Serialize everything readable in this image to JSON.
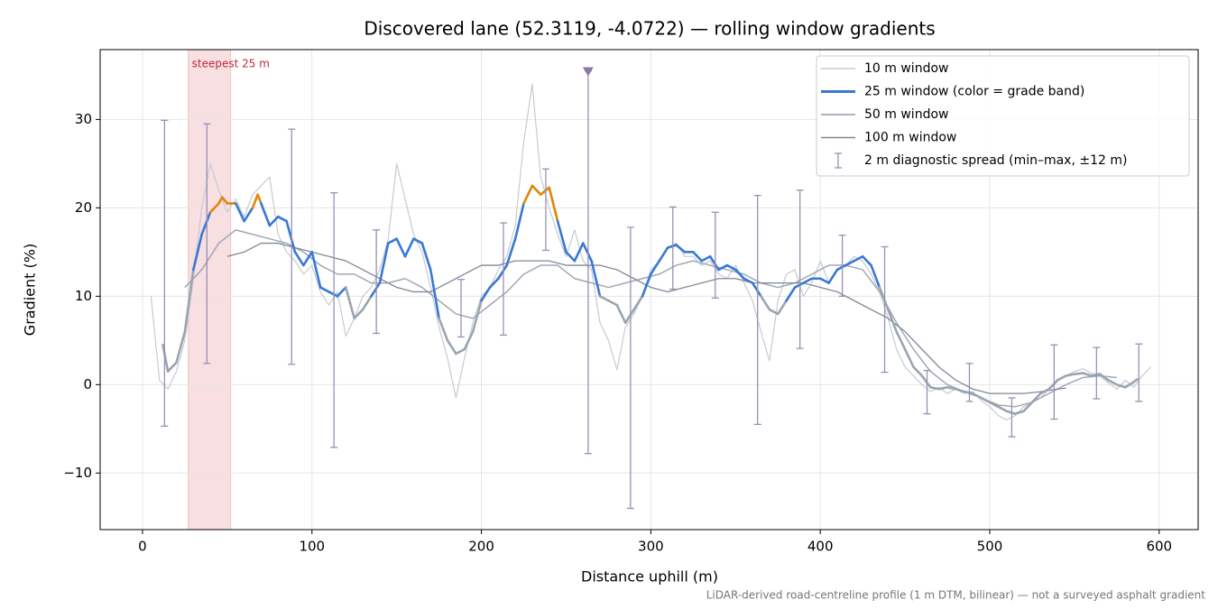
{
  "chart_data": {
    "type": "line",
    "title": "Discovered lane (52.3119, -4.0722) — rolling window gradients",
    "xlabel": "Distance uphill (m)",
    "ylabel": "Gradient (%)",
    "footnote": "LiDAR-derived road-centreline profile (1 m DTM, bilinear) — not a surveyed asphalt gradient",
    "xlim": [
      -25,
      623
    ],
    "ylim": [
      -16.4,
      37.9
    ],
    "xticks": [
      0,
      100,
      200,
      300,
      400,
      500,
      600
    ],
    "yticks": [
      {
        "value": -10,
        "label": "−10"
      },
      0,
      10,
      20,
      30
    ],
    "grid": true,
    "legend": "upper right",
    "highlight": {
      "label": "steepest 25 m",
      "x": [
        27,
        52
      ],
      "color": "#e8a3ab"
    },
    "series": [
      {
        "name": "10 m window",
        "color": "#c5cbd3",
        "x": [
          5,
          10,
          15,
          20,
          25,
          30,
          35,
          40,
          45,
          50,
          55,
          60,
          65,
          70,
          75,
          80,
          85,
          90,
          95,
          100,
          105,
          110,
          115,
          120,
          125,
          130,
          135,
          140,
          145,
          150,
          155,
          160,
          165,
          170,
          175,
          180,
          185,
          190,
          195,
          200,
          205,
          210,
          215,
          220,
          225,
          230,
          235,
          240,
          245,
          250,
          255,
          260,
          265,
          270,
          275,
          280,
          285,
          290,
          295,
          300,
          305,
          310,
          315,
          320,
          325,
          330,
          335,
          340,
          345,
          350,
          355,
          360,
          365,
          370,
          375,
          380,
          385,
          390,
          395,
          400,
          405,
          410,
          415,
          420,
          425,
          430,
          435,
          440,
          445,
          450,
          455,
          460,
          465,
          470,
          475,
          480,
          485,
          490,
          495,
          500,
          505,
          510,
          515,
          520,
          525,
          530,
          535,
          540,
          545,
          550,
          555,
          560,
          565,
          570,
          575,
          580,
          585,
          590,
          595
        ],
        "values": [
          10,
          0.5,
          -0.5,
          1.5,
          5,
          12,
          20,
          25,
          22,
          19.5,
          21,
          19,
          21.5,
          22.5,
          23.5,
          17,
          15,
          14,
          12.5,
          13.5,
          10.5,
          9,
          10.5,
          5.5,
          7.5,
          10,
          11,
          13,
          16.5,
          25,
          21,
          17,
          15,
          11,
          6.5,
          3,
          -1.5,
          3,
          7,
          10,
          11,
          13,
          14.5,
          18,
          27.5,
          34,
          23.5,
          20,
          17,
          14.5,
          17.5,
          14,
          13,
          7,
          5,
          1.7,
          6.5,
          8,
          10,
          13,
          14,
          15.5,
          16,
          14.5,
          14.5,
          13.5,
          14,
          12.5,
          12,
          13.5,
          11.5,
          9.5,
          6,
          2.7,
          9.5,
          12.5,
          13,
          10,
          11.5,
          14,
          11.5,
          13,
          13.5,
          14.5,
          14,
          12.5,
          10.5,
          7.5,
          4,
          2,
          1,
          0,
          -0.8,
          -0.3,
          -1,
          -0.5,
          -1,
          -0.8,
          -1.8,
          -2.5,
          -3.5,
          -4,
          -3.5,
          -2.5,
          -2,
          -1.5,
          -0.5,
          0.5,
          1,
          1.5,
          1.8,
          1.3,
          1,
          0.2,
          -0.5,
          0.5,
          -0.3,
          1,
          2
        ]
      },
      {
        "name": "25 m window (color = grade band)",
        "color": "#3a78d4",
        "band_colors": [
          {
            "below": 10,
            "color": "#9aa5b1"
          },
          {
            "below": 20,
            "color": "#3a78d4"
          },
          {
            "below": 100,
            "color": "#e0860a"
          }
        ],
        "x": [
          12,
          15,
          20,
          25,
          30,
          35,
          40,
          45,
          47,
          50,
          55,
          60,
          65,
          68,
          70,
          75,
          80,
          85,
          90,
          95,
          100,
          105,
          110,
          115,
          120,
          125,
          130,
          135,
          140,
          145,
          150,
          155,
          160,
          165,
          170,
          175,
          180,
          185,
          190,
          195,
          200,
          205,
          210,
          215,
          220,
          225,
          230,
          235,
          240,
          245,
          250,
          255,
          260,
          265,
          270,
          275,
          280,
          285,
          290,
          295,
          300,
          305,
          310,
          315,
          320,
          325,
          330,
          335,
          340,
          345,
          350,
          355,
          360,
          365,
          370,
          375,
          380,
          385,
          390,
          395,
          400,
          405,
          410,
          415,
          420,
          425,
          430,
          435,
          440,
          445,
          450,
          455,
          460,
          465,
          470,
          475,
          480,
          485,
          490,
          495,
          500,
          505,
          510,
          515,
          520,
          525,
          530,
          535,
          540,
          545,
          550,
          555,
          560,
          565,
          570,
          575,
          580,
          585,
          587
        ],
        "values": [
          4.5,
          1.5,
          2.5,
          6,
          13,
          17,
          19.5,
          20.5,
          21.2,
          20.5,
          20.5,
          18.5,
          20,
          21.5,
          20.5,
          18,
          19,
          18.5,
          15,
          13.5,
          15,
          11,
          10.5,
          10,
          11,
          7.5,
          8.5,
          10,
          11.5,
          16,
          16.5,
          14.5,
          16.5,
          16,
          13,
          7.5,
          5,
          3.5,
          4,
          6,
          9.5,
          11,
          12,
          13.5,
          16.5,
          20.5,
          22.5,
          21.5,
          22.3,
          18.5,
          15,
          14,
          16,
          14,
          10,
          9.5,
          9,
          7,
          8.5,
          10,
          12.5,
          14,
          15.5,
          15.8,
          15,
          15,
          14,
          14.5,
          13,
          13.5,
          13,
          12,
          11.5,
          10,
          8.5,
          8,
          9.5,
          11,
          11.5,
          12,
          12,
          11.5,
          13,
          13.5,
          14,
          14.5,
          13.5,
          11,
          8.5,
          6,
          4,
          2,
          1,
          -0.3,
          -0.5,
          -0.3,
          -0.5,
          -0.8,
          -1,
          -1.5,
          -2,
          -2.5,
          -3,
          -3.3,
          -3,
          -2,
          -1,
          -0.5,
          0.5,
          1,
          1.2,
          1.3,
          1,
          1.2,
          0.5,
          0,
          -0.3,
          0.3,
          0.6
        ]
      },
      {
        "name": "50 m window",
        "color": "#a0a8b5",
        "x": [
          25,
          35,
          45,
          55,
          65,
          75,
          85,
          95,
          105,
          115,
          125,
          135,
          145,
          155,
          165,
          175,
          185,
          195,
          205,
          215,
          225,
          235,
          245,
          255,
          265,
          275,
          285,
          295,
          305,
          315,
          325,
          335,
          345,
          355,
          365,
          375,
          385,
          395,
          405,
          415,
          425,
          435,
          445,
          455,
          465,
          475,
          485,
          495,
          505,
          515,
          525,
          535,
          545,
          555,
          565,
          575
        ],
        "values": [
          11,
          13,
          16,
          17.5,
          17,
          16.5,
          16,
          15,
          13.5,
          12.5,
          12.5,
          11.5,
          11.5,
          12,
          11,
          9.5,
          8,
          7.5,
          9,
          10.5,
          12.5,
          13.5,
          13.5,
          12,
          11.5,
          11,
          11.5,
          12,
          12.5,
          13.5,
          14,
          13.5,
          13,
          12.5,
          11.5,
          11,
          11.5,
          12.5,
          13.5,
          13.5,
          13,
          10.5,
          7,
          4,
          1.5,
          0,
          -0.8,
          -1.5,
          -2.3,
          -2.5,
          -2,
          -1,
          0,
          0.8,
          1,
          0.8
        ]
      },
      {
        "name": "100 m window",
        "color": "#7f8896",
        "x": [
          50,
          60,
          70,
          80,
          90,
          100,
          110,
          120,
          130,
          140,
          150,
          160,
          170,
          180,
          190,
          200,
          210,
          220,
          230,
          240,
          250,
          260,
          270,
          280,
          290,
          300,
          310,
          320,
          330,
          340,
          350,
          360,
          370,
          380,
          390,
          400,
          410,
          420,
          430,
          440,
          450,
          460,
          470,
          480,
          490,
          500,
          510,
          520,
          530,
          540,
          545
        ],
        "values": [
          14.5,
          15,
          16,
          16,
          15.5,
          15,
          14.5,
          14,
          13,
          12,
          11,
          10.5,
          10.5,
          11.5,
          12.5,
          13.5,
          13.5,
          14,
          14,
          14,
          13.5,
          13.5,
          13.5,
          13,
          12,
          11,
          10.5,
          11,
          11.5,
          12,
          12,
          11.5,
          11.5,
          11.5,
          11.5,
          11,
          10.5,
          9.5,
          8.5,
          7.5,
          6,
          4,
          2,
          0.5,
          -0.5,
          -1,
          -1,
          -1,
          -0.8,
          -0.5,
          -0.4
        ]
      }
    ],
    "errorbars": {
      "name": "2 m diagnostic spread (min–max, ±12 m)",
      "color": "#9a90b3",
      "x": [
        13,
        38,
        88,
        113,
        138,
        188,
        213,
        238,
        263,
        288,
        313,
        338,
        363,
        388,
        413,
        438,
        463,
        488,
        513,
        538,
        563,
        588
      ],
      "low": [
        -4.7,
        2.4,
        2.3,
        -7.1,
        5.8,
        5.4,
        5.6,
        15.2,
        -7.8,
        -14,
        10.8,
        9.8,
        -4.5,
        4.1,
        10,
        1.4,
        -3.3,
        -1.9,
        -5.9,
        -3.9,
        -1.6,
        -1.9
      ],
      "high": [
        29.9,
        29.5,
        28.9,
        21.7,
        17.5,
        11.9,
        18.3,
        24.4,
        35.5,
        17.8,
        20.1,
        19.5,
        21.4,
        22,
        16.9,
        15.6,
        1.6,
        2.4,
        -1.5,
        4.5,
        4.2,
        4.6
      ]
    }
  }
}
